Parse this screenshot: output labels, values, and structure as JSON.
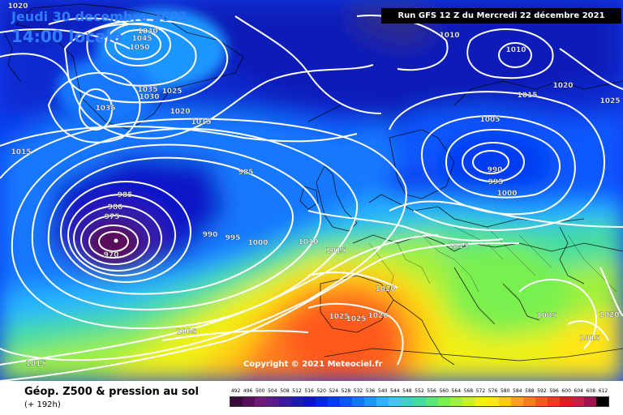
{
  "header": {
    "date_line": "Jeudi 30 decembre 2021",
    "time_line": "14:00 locale",
    "run_info": "Run GFS 12 Z du Mercredi 22 décembre 2021"
  },
  "copyright": "Copyright © 2021 Meteociel.fr",
  "footer": {
    "title": "Géop. Z500 & pression au sol",
    "lead_time": "(+ 192h)"
  },
  "scale": {
    "values": [
      "492",
      "496",
      "500",
      "504",
      "508",
      "512",
      "516",
      "520",
      "524",
      "528",
      "532",
      "536",
      "540",
      "544",
      "548",
      "552",
      "556",
      "560",
      "564",
      "568",
      "572",
      "576",
      "580",
      "584",
      "588",
      "592",
      "596",
      "600",
      "604",
      "608",
      "612"
    ],
    "colors": [
      "#3a0a3a",
      "#5a0f5a",
      "#6e1a7a",
      "#5a1a8c",
      "#3a1aa0",
      "#1a1ab4",
      "#0a14c8",
      "#0028dc",
      "#003cf0",
      "#0a58ff",
      "#1478ff",
      "#1e96ff",
      "#28b4ff",
      "#3cc8f0",
      "#3cd2c8",
      "#46dca0",
      "#5ae678",
      "#78f050",
      "#a0f03c",
      "#c8f028",
      "#f0f014",
      "#ffe614",
      "#ffc814",
      "#ffa01e",
      "#ff7d1e",
      "#ff5a1e",
      "#f03c1e",
      "#dc1e1e",
      "#c81e46",
      "#a01450",
      "#000000"
    ]
  },
  "isobar_labels": [
    {
      "id": "l1020a",
      "text": "1020"
    },
    {
      "id": "l1040",
      "text": "1040"
    },
    {
      "id": "l1045",
      "text": "1045"
    },
    {
      "id": "l1050",
      "text": "1050"
    },
    {
      "id": "l1035a",
      "text": "1035"
    },
    {
      "id": "l1030",
      "text": "1030"
    },
    {
      "id": "l1025a",
      "text": "1025"
    },
    {
      "id": "l1035b",
      "text": "1035"
    },
    {
      "id": "l1020b",
      "text": "1020"
    },
    {
      "id": "l1015a",
      "text": "1015"
    },
    {
      "id": "l1015b",
      "text": "1015"
    },
    {
      "id": "l985a",
      "text": "985"
    },
    {
      "id": "l985b",
      "text": "985"
    },
    {
      "id": "l980",
      "text": "980"
    },
    {
      "id": "l975",
      "text": "975"
    },
    {
      "id": "l970",
      "text": "970"
    },
    {
      "id": "l990a",
      "text": "990"
    },
    {
      "id": "l995a",
      "text": "995"
    },
    {
      "id": "l1000a",
      "text": "1000"
    },
    {
      "id": "l1010a",
      "text": "1010"
    },
    {
      "id": "l1015c",
      "text": "1015"
    },
    {
      "id": "l1005a",
      "text": "1005"
    },
    {
      "id": "l1015d",
      "text": "1015"
    },
    {
      "id": "l1010b",
      "text": "1010"
    },
    {
      "id": "l1010c",
      "text": "1010"
    },
    {
      "id": "l1020c",
      "text": "1020"
    },
    {
      "id": "l1015e",
      "text": "1015"
    },
    {
      "id": "l1025b",
      "text": "1025"
    },
    {
      "id": "l1005b",
      "text": "1005"
    },
    {
      "id": "l990b",
      "text": "990"
    },
    {
      "id": "l995b",
      "text": "995"
    },
    {
      "id": "l1000b",
      "text": "1000"
    },
    {
      "id": "l1015f",
      "text": "1015"
    },
    {
      "id": "l1020d",
      "text": "1020"
    },
    {
      "id": "l1020e",
      "text": "1020"
    },
    {
      "id": "l1025c",
      "text": "1025"
    },
    {
      "id": "l1025d",
      "text": "1025"
    },
    {
      "id": "l1005c",
      "text": "1005"
    },
    {
      "id": "l1020f",
      "text": "1020"
    },
    {
      "id": "l1015g",
      "text": "1015"
    }
  ]
}
